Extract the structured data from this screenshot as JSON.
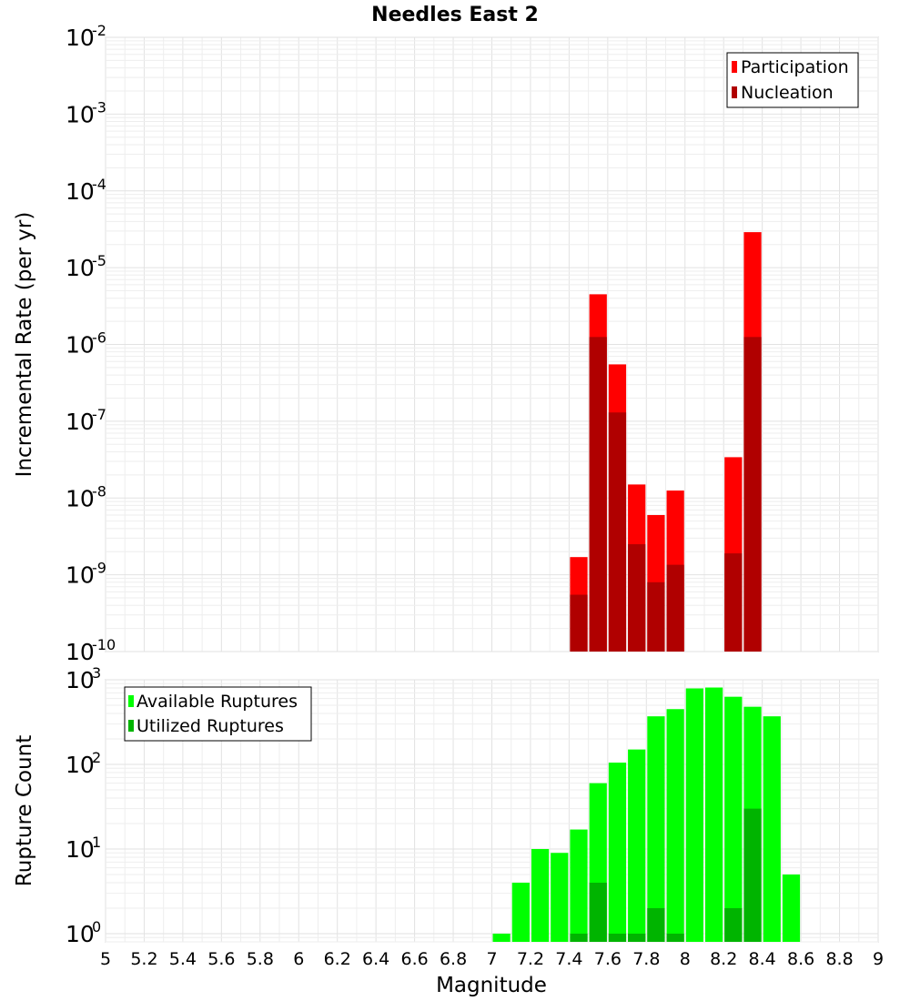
{
  "title": "Needles East 2",
  "colors": {
    "participation": "#ff0000",
    "nucleation": "#b00000",
    "available": "#00ff00",
    "utilized": "#00b400"
  },
  "chart_data": [
    {
      "type": "bar",
      "title": "Needles East 2",
      "ylabel": "Incremental Rate (per yr)",
      "xlabel": "",
      "y_scale": "log",
      "ylim": [
        1e-10,
        0.01
      ],
      "xlim": [
        5,
        9
      ],
      "y_ticks": [
        {
          "base": "10",
          "exp": "-10",
          "value": 1e-10
        },
        {
          "base": "10",
          "exp": "-9",
          "value": 1e-09
        },
        {
          "base": "10",
          "exp": "-8",
          "value": 1e-08
        },
        {
          "base": "10",
          "exp": "-7",
          "value": 1e-07
        },
        {
          "base": "10",
          "exp": "-6",
          "value": 1e-06
        },
        {
          "base": "10",
          "exp": "-5",
          "value": 1e-05
        },
        {
          "base": "10",
          "exp": "-4",
          "value": 0.0001
        },
        {
          "base": "10",
          "exp": "-3",
          "value": 0.001
        },
        {
          "base": "10",
          "exp": "-2",
          "value": 0.01
        }
      ],
      "legend": {
        "position": "top-right",
        "entries": [
          "Participation",
          "Nucleation"
        ]
      },
      "grid": true,
      "series": [
        {
          "name": "Participation",
          "color_key": "participation",
          "x": [
            7.45,
            7.55,
            7.65,
            7.75,
            7.85,
            7.95,
            8.25,
            8.35
          ],
          "values": [
            1.7e-09,
            4.5e-06,
            5.5e-07,
            1.5e-08,
            6e-09,
            1.25e-08,
            3.4e-08,
            2.9e-05
          ]
        },
        {
          "name": "Nucleation",
          "color_key": "nucleation",
          "x": [
            7.45,
            7.55,
            7.65,
            7.75,
            7.85,
            7.95,
            8.25,
            8.35
          ],
          "values": [
            5.5e-10,
            1.25e-06,
            1.3e-07,
            2.5e-09,
            8e-10,
            1.35e-09,
            1.9e-09,
            1.25e-06
          ]
        }
      ]
    },
    {
      "type": "bar",
      "title": "",
      "ylabel": "Rupture Count",
      "xlabel": "Magnitude",
      "y_scale": "log",
      "ylim": [
        0.8,
        1000
      ],
      "xlim": [
        5,
        9
      ],
      "x_ticks": [
        "5",
        "5.2",
        "5.4",
        "5.6",
        "5.8",
        "6",
        "6.2",
        "6.4",
        "6.6",
        "6.8",
        "7",
        "7.2",
        "7.4",
        "7.6",
        "7.8",
        "8",
        "8.2",
        "8.4",
        "8.6",
        "8.8",
        "9"
      ],
      "y_ticks": [
        {
          "base": "10",
          "exp": "0",
          "value": 1
        },
        {
          "base": "10",
          "exp": "1",
          "value": 10
        },
        {
          "base": "10",
          "exp": "2",
          "value": 100
        },
        {
          "base": "10",
          "exp": "3",
          "value": 1000
        }
      ],
      "legend": {
        "position": "top-left",
        "entries": [
          "Available Ruptures",
          "Utilized Ruptures"
        ]
      },
      "grid": true,
      "series": [
        {
          "name": "Available Ruptures",
          "color_key": "available",
          "x": [
            7.05,
            7.15,
            7.25,
            7.35,
            7.45,
            7.55,
            7.65,
            7.75,
            7.85,
            7.95,
            8.05,
            8.15,
            8.25,
            8.35,
            8.45,
            8.55
          ],
          "values": [
            1,
            4,
            10,
            9,
            17,
            60,
            105,
            150,
            370,
            450,
            790,
            810,
            630,
            480,
            370,
            5
          ]
        },
        {
          "name": "Utilized Ruptures",
          "color_key": "utilized",
          "x": [
            7.45,
            7.55,
            7.65,
            7.75,
            7.85,
            7.95,
            8.25,
            8.35
          ],
          "values": [
            1,
            4,
            1,
            1,
            2,
            1,
            2,
            30
          ]
        }
      ]
    }
  ]
}
